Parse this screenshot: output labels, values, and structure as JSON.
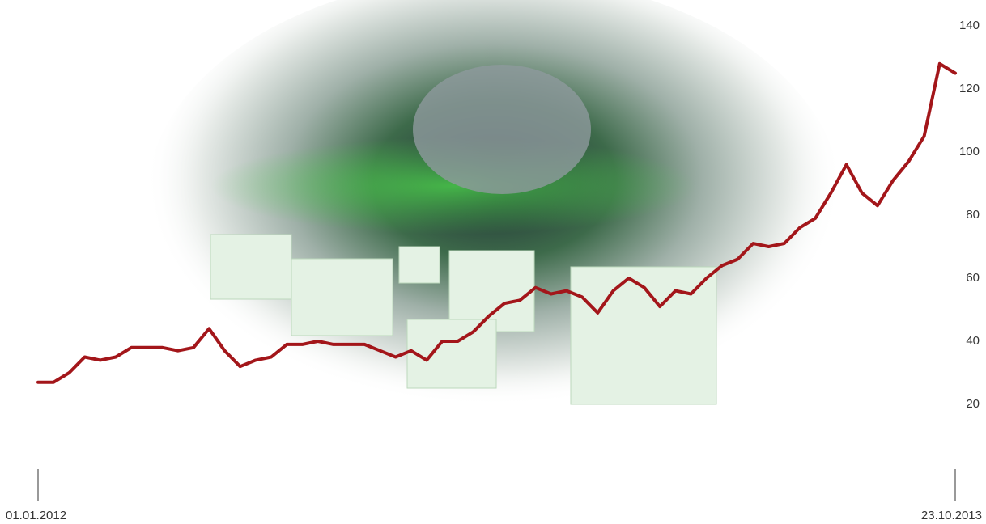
{
  "chart_data": {
    "type": "line",
    "categories": [
      "01.01.2012",
      null,
      null,
      null,
      null,
      null,
      null,
      null,
      null,
      null,
      null,
      null,
      null,
      null,
      null,
      null,
      null,
      null,
      null,
      null,
      null,
      null,
      null,
      null,
      null,
      null,
      null,
      null,
      null,
      null,
      null,
      null,
      null,
      null,
      null,
      null,
      null,
      null,
      null,
      null,
      null,
      null,
      null,
      null,
      null,
      null,
      null,
      null,
      null,
      null,
      null,
      null,
      null,
      null,
      null,
      null,
      null,
      null,
      null,
      "23.10.2013"
    ],
    "values": [
      27,
      27,
      30,
      35,
      34,
      35,
      38,
      38,
      38,
      37,
      38,
      44,
      37,
      32,
      34,
      35,
      39,
      39,
      40,
      39,
      39,
      39,
      37,
      35,
      37,
      34,
      40,
      40,
      43,
      48,
      52,
      53,
      57,
      55,
      56,
      54,
      49,
      56,
      60,
      57,
      51,
      56,
      55,
      60,
      64,
      66,
      71,
      70,
      71,
      76,
      79,
      87,
      96,
      87,
      83,
      91,
      97,
      105,
      128,
      125
    ],
    "color": "#a3161a",
    "ylim": [
      0,
      140
    ],
    "yticks": [
      20,
      40,
      60,
      80,
      100,
      120,
      140
    ],
    "grid": false
  }
}
